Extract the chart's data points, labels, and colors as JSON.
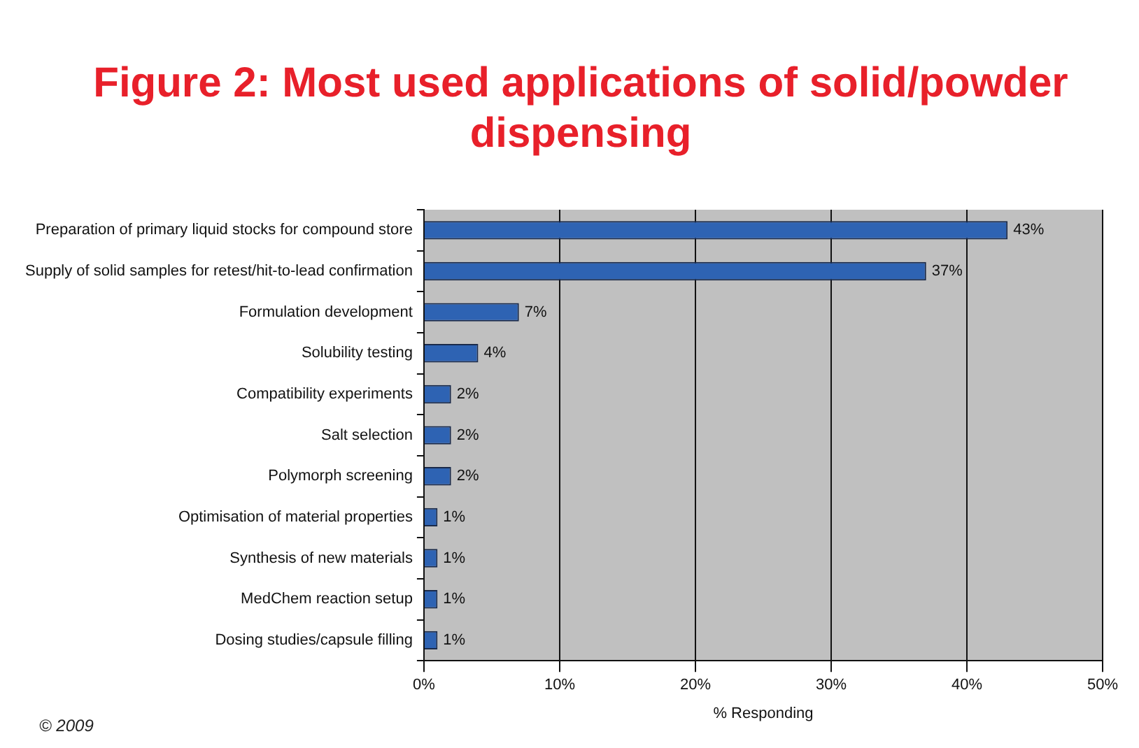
{
  "chart_data": {
    "type": "bar",
    "orientation": "horizontal",
    "title": "Figure 2: Most used applications of solid/powder dispensing",
    "xlabel": "% Responding",
    "categories": [
      "Preparation of primary liquid stocks for compound store",
      "Supply of solid samples for retest/hit-to-lead confirmation",
      "Formulation development",
      "Solubility testing",
      "Compatibility experiments",
      "Salt selection",
      "Polymorph screening",
      "Optimisation of material properties",
      "Synthesis of new materials",
      "MedChem reaction setup",
      "Dosing studies/capsule filling"
    ],
    "values": [
      43,
      37,
      7,
      4,
      2,
      2,
      2,
      1,
      1,
      1,
      1
    ],
    "value_labels": [
      "43%",
      "37%",
      "7%",
      "4%",
      "2%",
      "2%",
      "2%",
      "1%",
      "1%",
      "1%",
      "1%"
    ],
    "color": "#2e63b3",
    "xlim": [
      0,
      50
    ],
    "xticks": [
      {
        "value": 0,
        "label": "0%"
      },
      {
        "value": 10,
        "label": "10%"
      },
      {
        "value": 20,
        "label": "20%"
      },
      {
        "value": 30,
        "label": "30%"
      },
      {
        "value": 40,
        "label": "40%"
      },
      {
        "value": 50,
        "label": "50%"
      }
    ],
    "grid": "x",
    "legend": false,
    "annotations": [
      "© 2009"
    ]
  }
}
